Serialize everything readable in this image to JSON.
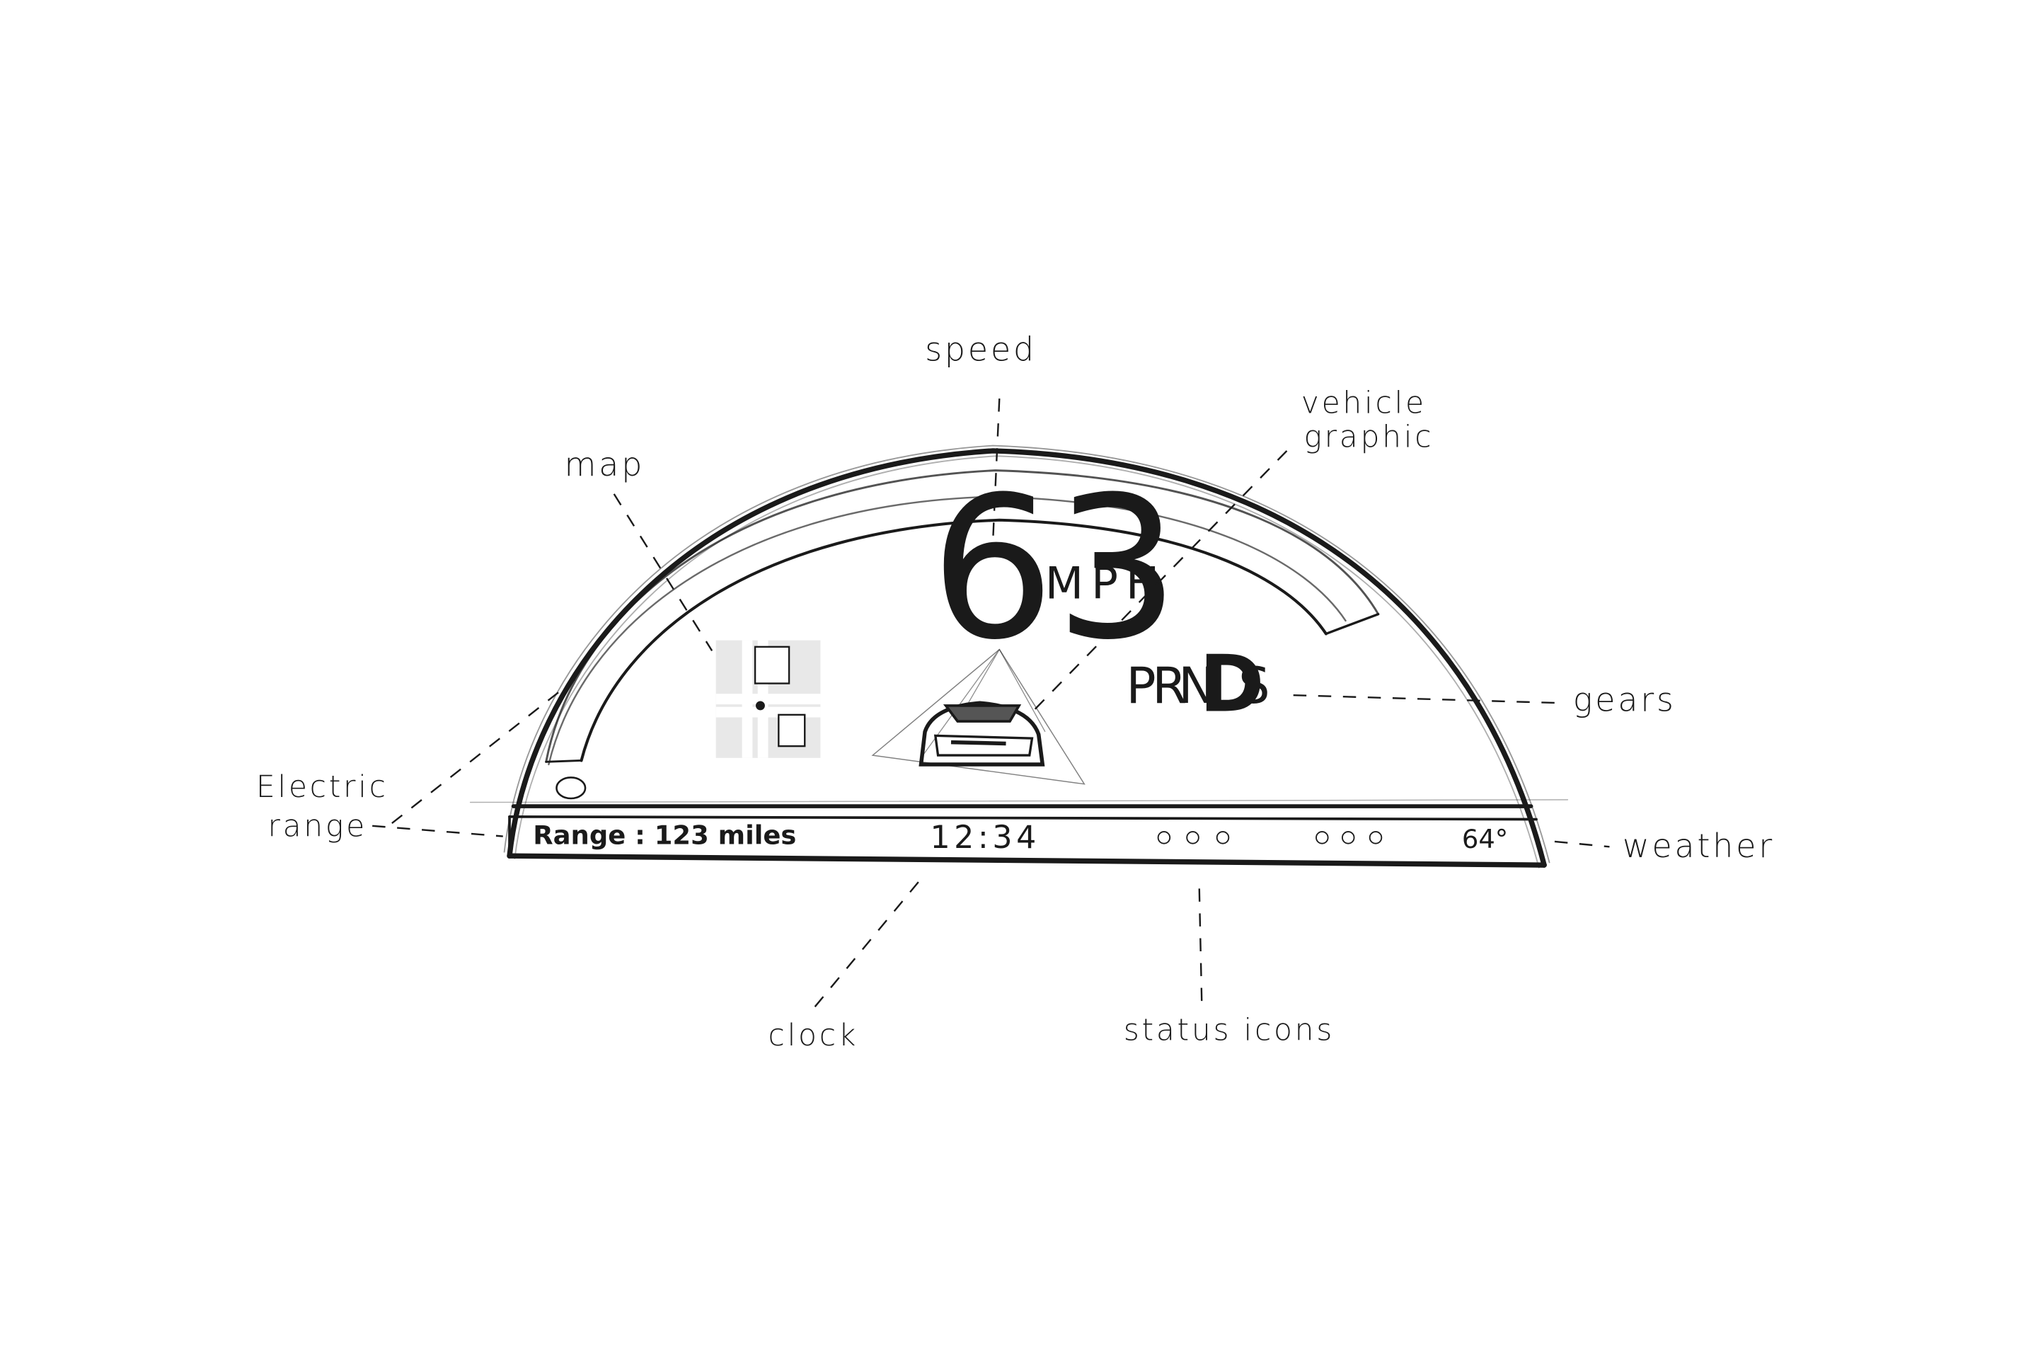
{
  "annotations": {
    "speed": "speed",
    "map": "map",
    "vehicle_graphic_line1": "vehicle",
    "vehicle_graphic_line2": "graphic",
    "gears": "gears",
    "electric_range_line1": "Electric",
    "electric_range_line2": "range",
    "weather": "weather",
    "clock": "clock",
    "status_icons": "status icons"
  },
  "dashboard": {
    "speed_value": "63",
    "speed_unit": "MPH",
    "gears": [
      "P",
      "R",
      "N",
      "D",
      "S"
    ],
    "active_gear": "D",
    "range_text": "Range : 123 miles",
    "clock": "12:34",
    "temperature": "64°",
    "status_icon_groups": 2,
    "status_icons_per_group": 3
  },
  "colors": {
    "ink": "#1a1a1a",
    "paper": "#ffffff"
  }
}
